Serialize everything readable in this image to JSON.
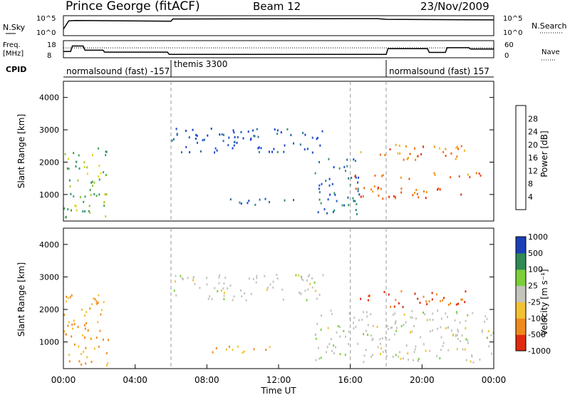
{
  "header": {
    "station": "Prince George (fitACF)",
    "beam": "Beam 12",
    "date": "23/Nov/2009"
  },
  "chart_data": [
    {
      "panel": "noise",
      "type": "line",
      "left_label": "N.Sky",
      "right_label": "N.Search",
      "left_ticks": [
        "10^5",
        "10^0"
      ],
      "right_ticks": [
        "10^5",
        "10^0"
      ],
      "series": [
        {
          "x_hours": [
            0,
            0.3,
            0.7,
            6,
            6.1,
            17.5,
            18,
            24
          ],
          "y_log": [
            0.35,
            0.8,
            0.82,
            0.78,
            0.9,
            0.92,
            0.88,
            0.85
          ]
        }
      ]
    },
    {
      "panel": "frequency",
      "type": "line",
      "left_label": "Freq. [MHz]",
      "right_label": "Nave",
      "left_ticks": [
        "18",
        "8"
      ],
      "right_ticks": [
        "60",
        "0"
      ],
      "freq_mhz": {
        "x_hours": [
          0,
          0.4,
          0.5,
          1.1,
          1.2,
          2.2,
          2.3,
          5.8,
          5.9,
          18,
          18.1,
          20.3,
          20.4,
          21.3,
          21.4,
          22.6,
          22.7,
          24
        ],
        "y": [
          12,
          12,
          15.5,
          15.5,
          12.8,
          12.8,
          11.6,
          11.6,
          10.2,
          10.2,
          13.8,
          13.8,
          11.4,
          11.4,
          14.4,
          14.4,
          13.6,
          13.6
        ]
      },
      "nave": {
        "x_hours": [
          0,
          24
        ],
        "y": [
          38,
          38
        ]
      }
    },
    {
      "panel": "cpid",
      "label": "CPID",
      "segments": [
        {
          "start_hours": 0,
          "end_hours": 6,
          "text": "normalsound (fast) -157"
        },
        {
          "start_hours": 6,
          "end_hours": 18,
          "text": "themis 3300"
        },
        {
          "start_hours": 18,
          "end_hours": 24,
          "text": "normalsound (fast) 157"
        }
      ]
    },
    {
      "panel": "power",
      "type": "heatmap",
      "ylabel": "Slant Range [km]",
      "ylim": [
        180,
        4500
      ],
      "yticks": [
        1000,
        2000,
        3000,
        4000
      ],
      "xlim": [
        0,
        24
      ],
      "colorbar": {
        "label": "Power [dB]",
        "ticks": [
          "4",
          "8",
          "12",
          "16",
          "20",
          "24",
          "28"
        ],
        "range": [
          0,
          32
        ]
      },
      "features": [
        {
          "t0": 0,
          "t1": 2.5,
          "r0": 300,
          "r1": 2500,
          "value": 14
        },
        {
          "t0": 6,
          "t1": 14.5,
          "r0": 2300,
          "r1": 3100,
          "value": 6
        },
        {
          "t0": 8,
          "t1": 13,
          "r0": 700,
          "r1": 900,
          "value": 7
        },
        {
          "t0": 14,
          "t1": 16.5,
          "r0": 400,
          "r1": 2200,
          "value": 8
        },
        {
          "t0": 16.2,
          "t1": 23.5,
          "r0": 1500,
          "r1": 1700,
          "value": 22
        },
        {
          "t0": 16.2,
          "t1": 23,
          "r0": 900,
          "r1": 1300,
          "value": 24
        },
        {
          "t0": 16.5,
          "t1": 22.5,
          "r0": 2100,
          "r1": 2600,
          "value": 22
        }
      ]
    },
    {
      "panel": "velocity",
      "type": "heatmap",
      "ylabel": "Slant Range [km]",
      "xlabel": "Time UT",
      "ylim": [
        180,
        4500
      ],
      "yticks": [
        1000,
        2000,
        3000,
        4000
      ],
      "xlim": [
        0,
        24
      ],
      "xticks": [
        "00:00",
        "04:00",
        "08:00",
        "12:00",
        "16:00",
        "20:00",
        "00:00"
      ],
      "colorbar": {
        "label": "Velocity [m s⁻¹]",
        "ticks": [
          "1000",
          "500",
          "100",
          "25",
          "-25",
          "-100",
          "-500",
          "-1000"
        ]
      },
      "features": [
        {
          "t0": 0,
          "t1": 2.5,
          "r0": 300,
          "r1": 2500,
          "value": -100
        },
        {
          "t0": 6,
          "t1": 14.5,
          "r0": 2300,
          "r1": 3100,
          "value": 0
        },
        {
          "t0": 8,
          "t1": 13,
          "r0": 700,
          "r1": 900,
          "value": -100
        },
        {
          "t0": 14,
          "t1": 24,
          "r0": 400,
          "r1": 2000,
          "value": 0
        },
        {
          "t0": 16.5,
          "t1": 22.5,
          "r0": 2100,
          "r1": 2600,
          "value": -500
        }
      ]
    }
  ]
}
